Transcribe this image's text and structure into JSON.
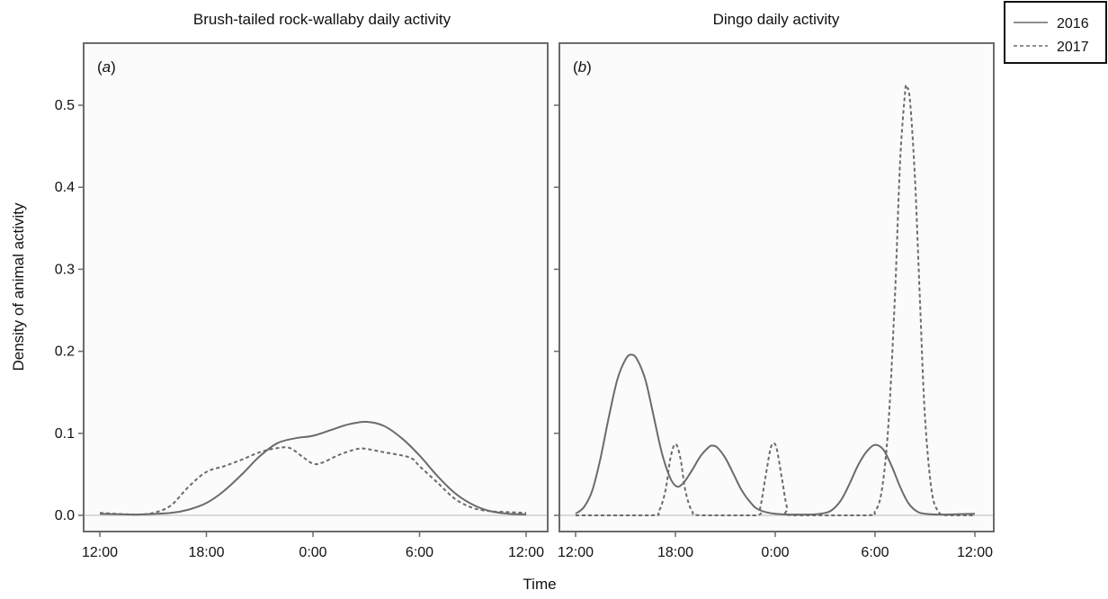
{
  "figure": {
    "ylabel": "Density of animal activity",
    "xlabel": "Time",
    "legend": {
      "position": "top-right",
      "entries": [
        {
          "label": "2016",
          "style": "solid",
          "color": "#6b6b6b"
        },
        {
          "label": "2017",
          "style": "dashed",
          "color": "#6b6b6b"
        }
      ]
    },
    "colors": {
      "panel_bg": "#fbfbfb",
      "frame": "#6b6b6b",
      "zero_line": "#cfcfcf"
    }
  },
  "chart_data": [
    {
      "type": "line",
      "title": "Brush-tailed rock-wallaby daily activity",
      "panel_label_prefix": "(",
      "panel_label_letter": "a",
      "panel_label_suffix": ")",
      "xlabel": "Time",
      "ylabel": "Density of animal activity",
      "x_unit": "hours since 12:00",
      "xlim": [
        0,
        24
      ],
      "ylim": [
        0,
        0.52
      ],
      "x_ticks": [
        {
          "value": 0,
          "label": "12:00"
        },
        {
          "value": 6,
          "label": "18:00"
        },
        {
          "value": 12,
          "label": "0:00"
        },
        {
          "value": 18,
          "label": "6:00"
        },
        {
          "value": 24,
          "label": "12:00"
        }
      ],
      "y_ticks": [
        {
          "value": 0.0,
          "label": "0.0"
        },
        {
          "value": 0.1,
          "label": "0.1"
        },
        {
          "value": 0.2,
          "label": "0.2"
        },
        {
          "value": 0.3,
          "label": "0.3"
        },
        {
          "value": 0.4,
          "label": "0.4"
        },
        {
          "value": 0.5,
          "label": "0.5"
        }
      ],
      "grid": false,
      "series": [
        {
          "name": "2016",
          "style": "solid",
          "points": [
            [
              0,
              0.002
            ],
            [
              2,
              0.001
            ],
            [
              4,
              0.003
            ],
            [
              5,
              0.007
            ],
            [
              6,
              0.015
            ],
            [
              7,
              0.03
            ],
            [
              8,
              0.05
            ],
            [
              9,
              0.072
            ],
            [
              10,
              0.088
            ],
            [
              11,
              0.094
            ],
            [
              12,
              0.097
            ],
            [
              13,
              0.104
            ],
            [
              14,
              0.111
            ],
            [
              15,
              0.114
            ],
            [
              16,
              0.109
            ],
            [
              17,
              0.094
            ],
            [
              18,
              0.073
            ],
            [
              19,
              0.048
            ],
            [
              20,
              0.027
            ],
            [
              21,
              0.013
            ],
            [
              22,
              0.005
            ],
            [
              23,
              0.002
            ],
            [
              24,
              0.001
            ]
          ]
        },
        {
          "name": "2017",
          "style": "dashed",
          "points": [
            [
              0,
              0.003
            ],
            [
              2,
              0.001
            ],
            [
              3,
              0.003
            ],
            [
              4,
              0.012
            ],
            [
              5,
              0.035
            ],
            [
              6,
              0.053
            ],
            [
              7,
              0.06
            ],
            [
              8,
              0.068
            ],
            [
              9,
              0.077
            ],
            [
              10,
              0.082
            ],
            [
              10.7,
              0.082
            ],
            [
              11.5,
              0.07
            ],
            [
              12,
              0.063
            ],
            [
              12.5,
              0.064
            ],
            [
              13.5,
              0.074
            ],
            [
              14.5,
              0.081
            ],
            [
              15,
              0.081
            ],
            [
              16,
              0.077
            ],
            [
              17,
              0.073
            ],
            [
              17.6,
              0.069
            ],
            [
              18,
              0.06
            ],
            [
              19,
              0.04
            ],
            [
              20,
              0.02
            ],
            [
              21,
              0.009
            ],
            [
              22,
              0.005
            ],
            [
              23,
              0.004
            ],
            [
              24,
              0.003
            ]
          ]
        }
      ]
    },
    {
      "type": "line",
      "title": "Dingo daily activity",
      "panel_label_prefix": "(",
      "panel_label_letter": "b",
      "panel_label_suffix": ")",
      "xlabel": "Time",
      "ylabel": "Density of animal activity",
      "x_unit": "hours since 12:00",
      "xlim": [
        0,
        24
      ],
      "ylim": [
        0,
        0.52
      ],
      "x_ticks": [
        {
          "value": 0,
          "label": "12:00"
        },
        {
          "value": 6,
          "label": "18:00"
        },
        {
          "value": 12,
          "label": "0:00"
        },
        {
          "value": 18,
          "label": "6:00"
        },
        {
          "value": 24,
          "label": "12:00"
        }
      ],
      "y_ticks": [
        {
          "value": 0.0,
          "label": ""
        },
        {
          "value": 0.1,
          "label": ""
        },
        {
          "value": 0.2,
          "label": ""
        },
        {
          "value": 0.3,
          "label": ""
        },
        {
          "value": 0.4,
          "label": ""
        },
        {
          "value": 0.5,
          "label": ""
        }
      ],
      "grid": false,
      "series": [
        {
          "name": "2016",
          "style": "solid",
          "points": [
            [
              0,
              0.002
            ],
            [
              0.5,
              0.01
            ],
            [
              1,
              0.03
            ],
            [
              1.5,
              0.07
            ],
            [
              2,
              0.12
            ],
            [
              2.5,
              0.165
            ],
            [
              3,
              0.19
            ],
            [
              3.35,
              0.196
            ],
            [
              3.7,
              0.19
            ],
            [
              4.2,
              0.165
            ],
            [
              4.7,
              0.12
            ],
            [
              5.2,
              0.075
            ],
            [
              5.7,
              0.045
            ],
            [
              6.1,
              0.035
            ],
            [
              6.5,
              0.04
            ],
            [
              7,
              0.055
            ],
            [
              7.5,
              0.072
            ],
            [
              8,
              0.083
            ],
            [
              8.2,
              0.085
            ],
            [
              8.5,
              0.083
            ],
            [
              9,
              0.07
            ],
            [
              9.5,
              0.05
            ],
            [
              10,
              0.03
            ],
            [
              10.5,
              0.016
            ],
            [
              11,
              0.007
            ],
            [
              12,
              0.002
            ],
            [
              14,
              0.001
            ],
            [
              15,
              0.003
            ],
            [
              15.5,
              0.008
            ],
            [
              16,
              0.02
            ],
            [
              16.5,
              0.04
            ],
            [
              17,
              0.062
            ],
            [
              17.5,
              0.078
            ],
            [
              18,
              0.086
            ],
            [
              18.5,
              0.08
            ],
            [
              19,
              0.06
            ],
            [
              19.5,
              0.035
            ],
            [
              20,
              0.015
            ],
            [
              20.5,
              0.005
            ],
            [
              21,
              0.002
            ],
            [
              22,
              0.001
            ],
            [
              24,
              0.002
            ]
          ]
        },
        {
          "name": "2017",
          "style": "dashed",
          "points": [
            [
              0,
              0.0
            ],
            [
              4.5,
              0.0
            ],
            [
              5,
              0.005
            ],
            [
              5.4,
              0.03
            ],
            [
              5.7,
              0.07
            ],
            [
              6,
              0.087
            ],
            [
              6.3,
              0.07
            ],
            [
              6.6,
              0.03
            ],
            [
              7,
              0.005
            ],
            [
              7.5,
              0.0
            ],
            [
              10.8,
              0.0
            ],
            [
              11.1,
              0.01
            ],
            [
              11.4,
              0.045
            ],
            [
              11.7,
              0.08
            ],
            [
              11.9,
              0.088
            ],
            [
              12.1,
              0.08
            ],
            [
              12.4,
              0.045
            ],
            [
              12.7,
              0.01
            ],
            [
              13,
              0.0
            ],
            [
              17.5,
              0.0
            ],
            [
              18,
              0.005
            ],
            [
              18.4,
              0.03
            ],
            [
              18.8,
              0.11
            ],
            [
              19.2,
              0.27
            ],
            [
              19.5,
              0.43
            ],
            [
              19.8,
              0.515
            ],
            [
              19.9,
              0.522
            ],
            [
              20.1,
              0.505
            ],
            [
              20.4,
              0.41
            ],
            [
              20.7,
              0.26
            ],
            [
              21,
              0.12
            ],
            [
              21.4,
              0.03
            ],
            [
              21.8,
              0.005
            ],
            [
              22.3,
              0.0
            ],
            [
              24,
              0.0
            ]
          ]
        }
      ]
    }
  ]
}
